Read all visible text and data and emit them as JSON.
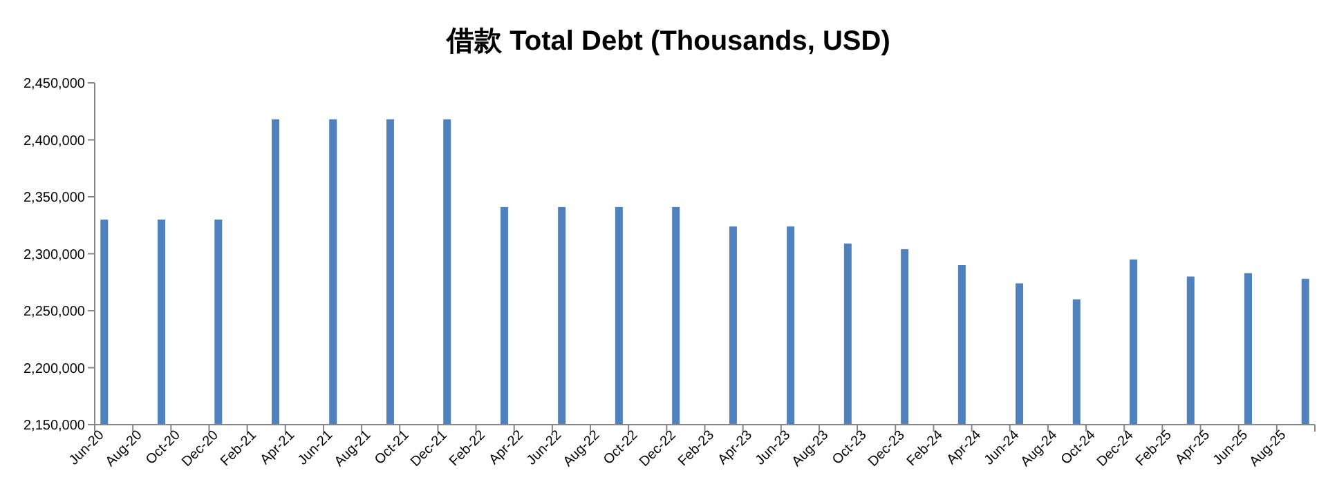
{
  "chart_data": {
    "type": "bar",
    "title": "借款 Total Debt (Thousands, USD)",
    "x": [
      "2020-06-16",
      "2020-09-16",
      "2020-12-16",
      "2021-03-16",
      "2021-06-16",
      "2021-09-16",
      "2021-12-16",
      "2022-03-16",
      "2022-06-16",
      "2022-09-16",
      "2022-12-16",
      "2023-03-16",
      "2023-06-16",
      "2023-09-16",
      "2023-12-16",
      "2024-03-16",
      "2024-06-16",
      "2024-09-16",
      "2024-12-16",
      "2025-03-16",
      "2025-06-16",
      "2025-09-16"
    ],
    "values": [
      2330000,
      2330000,
      2330000,
      2418000,
      2418000,
      2418000,
      2418000,
      2341000,
      2341000,
      2341000,
      2341000,
      2324000,
      2324000,
      2309000,
      2304000,
      2290000,
      2274000,
      2260000,
      2295000,
      2280000,
      2283000,
      2278000
    ],
    "color": "#4f81bd",
    "xlim": [
      "2020-06",
      "2025-10"
    ],
    "xticks": [
      {
        "value": "2020-06",
        "label": "Jun-20"
      },
      {
        "value": "2020-08",
        "label": "Aug-20"
      },
      {
        "value": "2020-10",
        "label": "Oct-20"
      },
      {
        "value": "2020-12",
        "label": "Dec-20"
      },
      {
        "value": "2021-02",
        "label": "Feb-21"
      },
      {
        "value": "2021-04",
        "label": "Apr-21"
      },
      {
        "value": "2021-06",
        "label": "Jun-21"
      },
      {
        "value": "2021-08",
        "label": "Aug-21"
      },
      {
        "value": "2021-10",
        "label": "Oct-21"
      },
      {
        "value": "2021-12",
        "label": "Dec-21"
      },
      {
        "value": "2022-02",
        "label": "Feb-22"
      },
      {
        "value": "2022-04",
        "label": "Apr-22"
      },
      {
        "value": "2022-06",
        "label": "Jun-22"
      },
      {
        "value": "2022-08",
        "label": "Aug-22"
      },
      {
        "value": "2022-10",
        "label": "Oct-22"
      },
      {
        "value": "2022-12",
        "label": "Dec-22"
      },
      {
        "value": "2023-02",
        "label": "Feb-23"
      },
      {
        "value": "2023-04",
        "label": "Apr-23"
      },
      {
        "value": "2023-06",
        "label": "Jun-23"
      },
      {
        "value": "2023-08",
        "label": "Aug-23"
      },
      {
        "value": "2023-10",
        "label": "Oct-23"
      },
      {
        "value": "2023-12",
        "label": "Dec-23"
      },
      {
        "value": "2024-02",
        "label": "Feb-24"
      },
      {
        "value": "2024-04",
        "label": "Apr-24"
      },
      {
        "value": "2024-06",
        "label": "Jun-24"
      },
      {
        "value": "2024-08",
        "label": "Aug-24"
      },
      {
        "value": "2024-10",
        "label": "Oct-24"
      },
      {
        "value": "2024-12",
        "label": "Dec-24"
      },
      {
        "value": "2025-02",
        "label": "Feb-25"
      },
      {
        "value": "2025-04",
        "label": "Apr-25"
      },
      {
        "value": "2025-06",
        "label": "Jun-25"
      },
      {
        "value": "2025-08",
        "label": "Aug-25"
      },
      {
        "value": "2025-10",
        "label": null
      }
    ],
    "ylim": [
      2150000,
      2450000
    ],
    "yticks": [
      {
        "value": 2150000,
        "label": "2,150,000"
      },
      {
        "value": 2200000,
        "label": "2,200,000"
      },
      {
        "value": 2250000,
        "label": "2,250,000"
      },
      {
        "value": 2300000,
        "label": "2,300,000"
      },
      {
        "value": 2350000,
        "label": "2,350,000"
      },
      {
        "value": 2400000,
        "label": "2,400,000"
      },
      {
        "value": 2450000,
        "label": "2,450,000"
      }
    ],
    "grid": false
  }
}
